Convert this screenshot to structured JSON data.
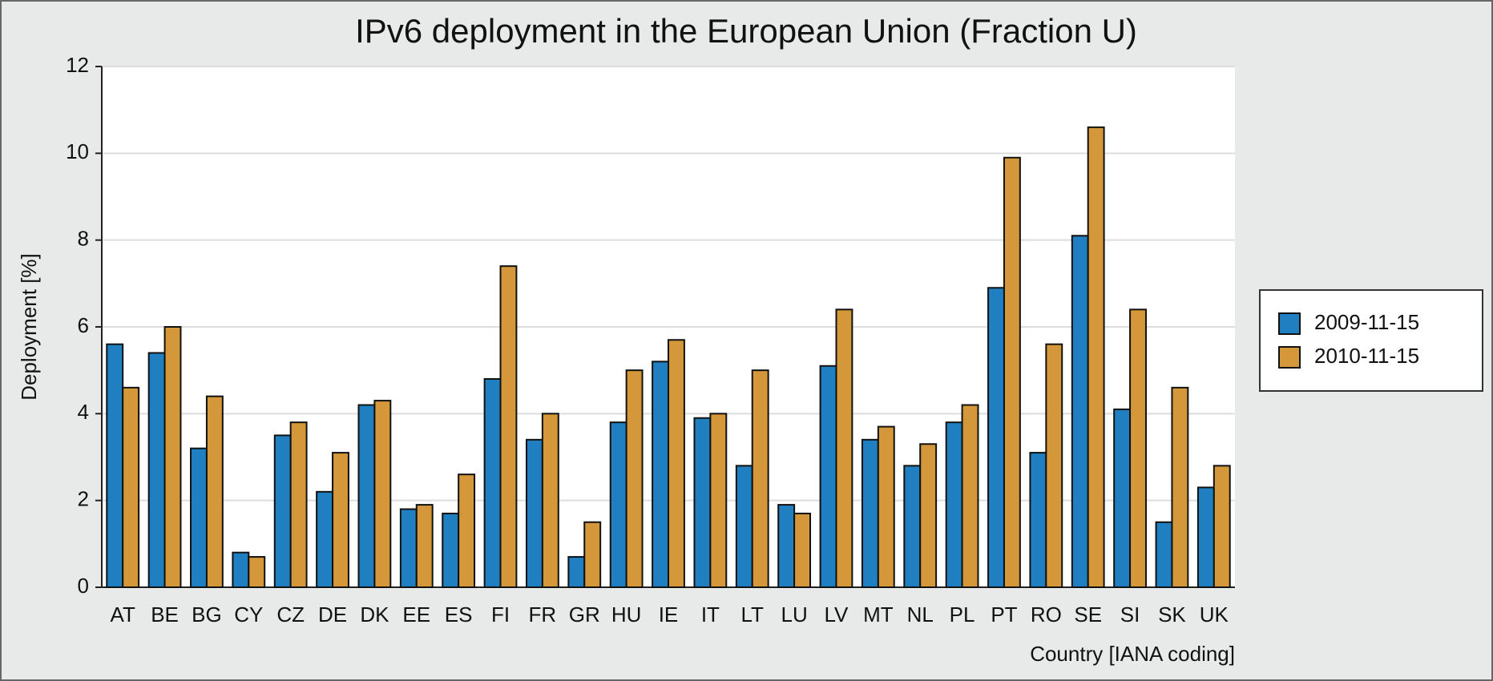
{
  "chart_data": {
    "type": "bar",
    "title": "IPv6 deployment in the European Union (Fraction U)",
    "x_label": "Country [IANA coding]",
    "y_label": "Deployment [%]",
    "categories": [
      "AT",
      "BE",
      "BG",
      "CY",
      "CZ",
      "DE",
      "DK",
      "EE",
      "ES",
      "FI",
      "FR",
      "GR",
      "HU",
      "IE",
      "IT",
      "LT",
      "LU",
      "LV",
      "MT",
      "NL",
      "PL",
      "PT",
      "RO",
      "SE",
      "SI",
      "SK",
      "UK"
    ],
    "series": [
      {
        "name": "2009-11-15",
        "color": "#1f7fc0",
        "values": [
          5.6,
          5.4,
          3.2,
          0.8,
          3.5,
          2.2,
          4.2,
          1.8,
          1.7,
          4.8,
          3.4,
          0.7,
          3.8,
          5.2,
          3.9,
          2.8,
          1.9,
          5.1,
          3.4,
          2.8,
          3.8,
          6.9,
          3.1,
          8.1,
          4.1,
          1.5,
          2.3
        ]
      },
      {
        "name": "2010-11-15",
        "color": "#d4973a",
        "values": [
          4.6,
          6.0,
          4.4,
          0.7,
          3.8,
          3.1,
          4.3,
          1.9,
          2.6,
          7.4,
          4.0,
          1.5,
          5.0,
          5.7,
          4.0,
          5.0,
          1.7,
          6.4,
          3.7,
          3.3,
          4.2,
          9.9,
          5.6,
          10.6,
          6.4,
          4.6,
          2.8
        ]
      }
    ],
    "ylim": [
      0,
      12
    ],
    "yticks": [
      0,
      2,
      4,
      6,
      8,
      10,
      12
    ],
    "grid": true,
    "legend": "right"
  }
}
